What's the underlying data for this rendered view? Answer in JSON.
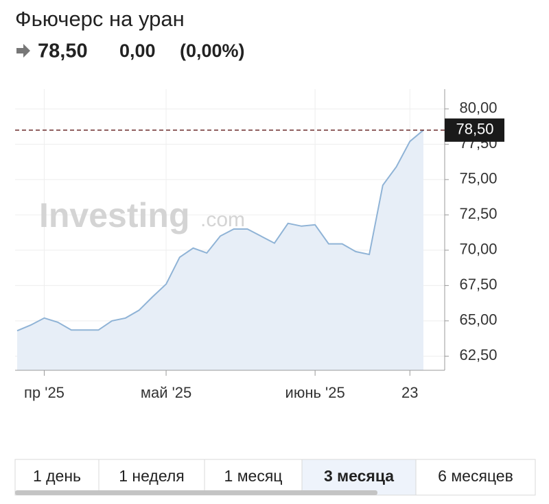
{
  "header": {
    "title": "Фьючерс на уран",
    "price": "78,50",
    "change": "0,00",
    "change_pct": "(0,00%)"
  },
  "watermark": {
    "brand": "Investing",
    "suffix": ".com"
  },
  "chart_data": {
    "type": "area",
    "categories": [
      null,
      null,
      "пр '25",
      null,
      null,
      null,
      null,
      null,
      null,
      null,
      null,
      "май '25",
      null,
      null,
      null,
      null,
      null,
      null,
      null,
      null,
      null,
      null,
      "июнь '25",
      null,
      null,
      null,
      null,
      null,
      null,
      "23",
      null
    ],
    "values": [
      64.3,
      64.7,
      65.2,
      64.9,
      64.35,
      64.35,
      64.35,
      65.0,
      65.2,
      65.75,
      66.7,
      67.6,
      69.5,
      70.15,
      69.8,
      71.0,
      71.5,
      71.5,
      71.0,
      70.5,
      71.9,
      71.7,
      71.8,
      70.45,
      70.45,
      69.9,
      69.7,
      74.6,
      75.9,
      77.7,
      78.5
    ],
    "color": "#8fb3d6",
    "ylim": [
      61.5,
      81.4
    ],
    "yticks": [
      {
        "value": 62.5,
        "label": "62,50"
      },
      {
        "value": 65,
        "label": "65,00"
      },
      {
        "value": 67.5,
        "label": "67,50"
      },
      {
        "value": 70,
        "label": "70,00"
      },
      {
        "value": 72.5,
        "label": "72,50"
      },
      {
        "value": 75,
        "label": "75,00"
      },
      {
        "value": 77.5,
        "label": "77,50"
      },
      {
        "value": 80,
        "label": "80,00"
      }
    ],
    "grid": true,
    "last_price": {
      "value": 78.5,
      "label": "78,50"
    }
  },
  "tabs": [
    "1 день",
    "1 неделя",
    "1 месяц",
    "3 месяца",
    "6 месяцев"
  ],
  "selected_tab": 3
}
